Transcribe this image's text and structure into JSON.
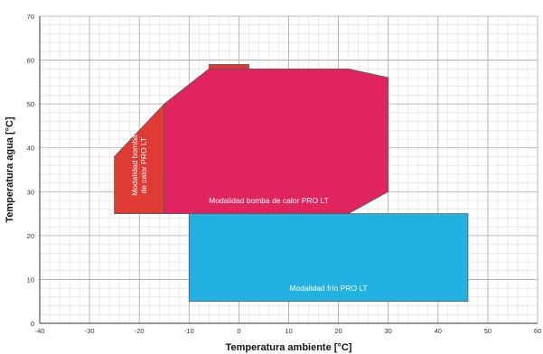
{
  "chart_data": {
    "type": "area",
    "xlabel": "Temperatura ambiente [°C]",
    "ylabel": "Temperatura agua [°C]",
    "xlim": [
      -40,
      60
    ],
    "ylim": [
      0,
      70
    ],
    "x_ticks": [
      "-40",
      "-30",
      "-20",
      "-10",
      "0",
      "10",
      "20",
      "30",
      "40",
      "50",
      "60"
    ],
    "y_ticks": [
      "0",
      "10",
      "20",
      "30",
      "40",
      "50",
      "60",
      "70"
    ],
    "grid": true,
    "regions": [
      {
        "key": "red",
        "label_lines": [
          "Modalidad bomba",
          "de calor PRO LT"
        ],
        "color": "#dd3b33",
        "points": [
          [
            -25,
            25
          ],
          [
            -25,
            38
          ],
          [
            -15,
            50
          ],
          [
            -15,
            25
          ]
        ]
      },
      {
        "key": "red_top",
        "label_lines": [],
        "color": "#dd3b33",
        "points": [
          [
            -6,
            59
          ],
          [
            2,
            59
          ],
          [
            2,
            58
          ],
          [
            -6,
            58
          ]
        ]
      },
      {
        "key": "pink",
        "label_lines": [
          "Modalidad bomba de calor PRO LT"
        ],
        "color": "#e0245e",
        "points": [
          [
            -15,
            25
          ],
          [
            -15,
            50
          ],
          [
            -6,
            58
          ],
          [
            22,
            58
          ],
          [
            30,
            56
          ],
          [
            30,
            30
          ],
          [
            22,
            25
          ]
        ]
      },
      {
        "key": "blue",
        "label_lines": [
          "Modalidad frío PRO LT"
        ],
        "color": "#22b1e0",
        "points": [
          [
            -10,
            5
          ],
          [
            -10,
            25
          ],
          [
            46,
            25
          ],
          [
            46,
            5
          ]
        ]
      }
    ]
  }
}
